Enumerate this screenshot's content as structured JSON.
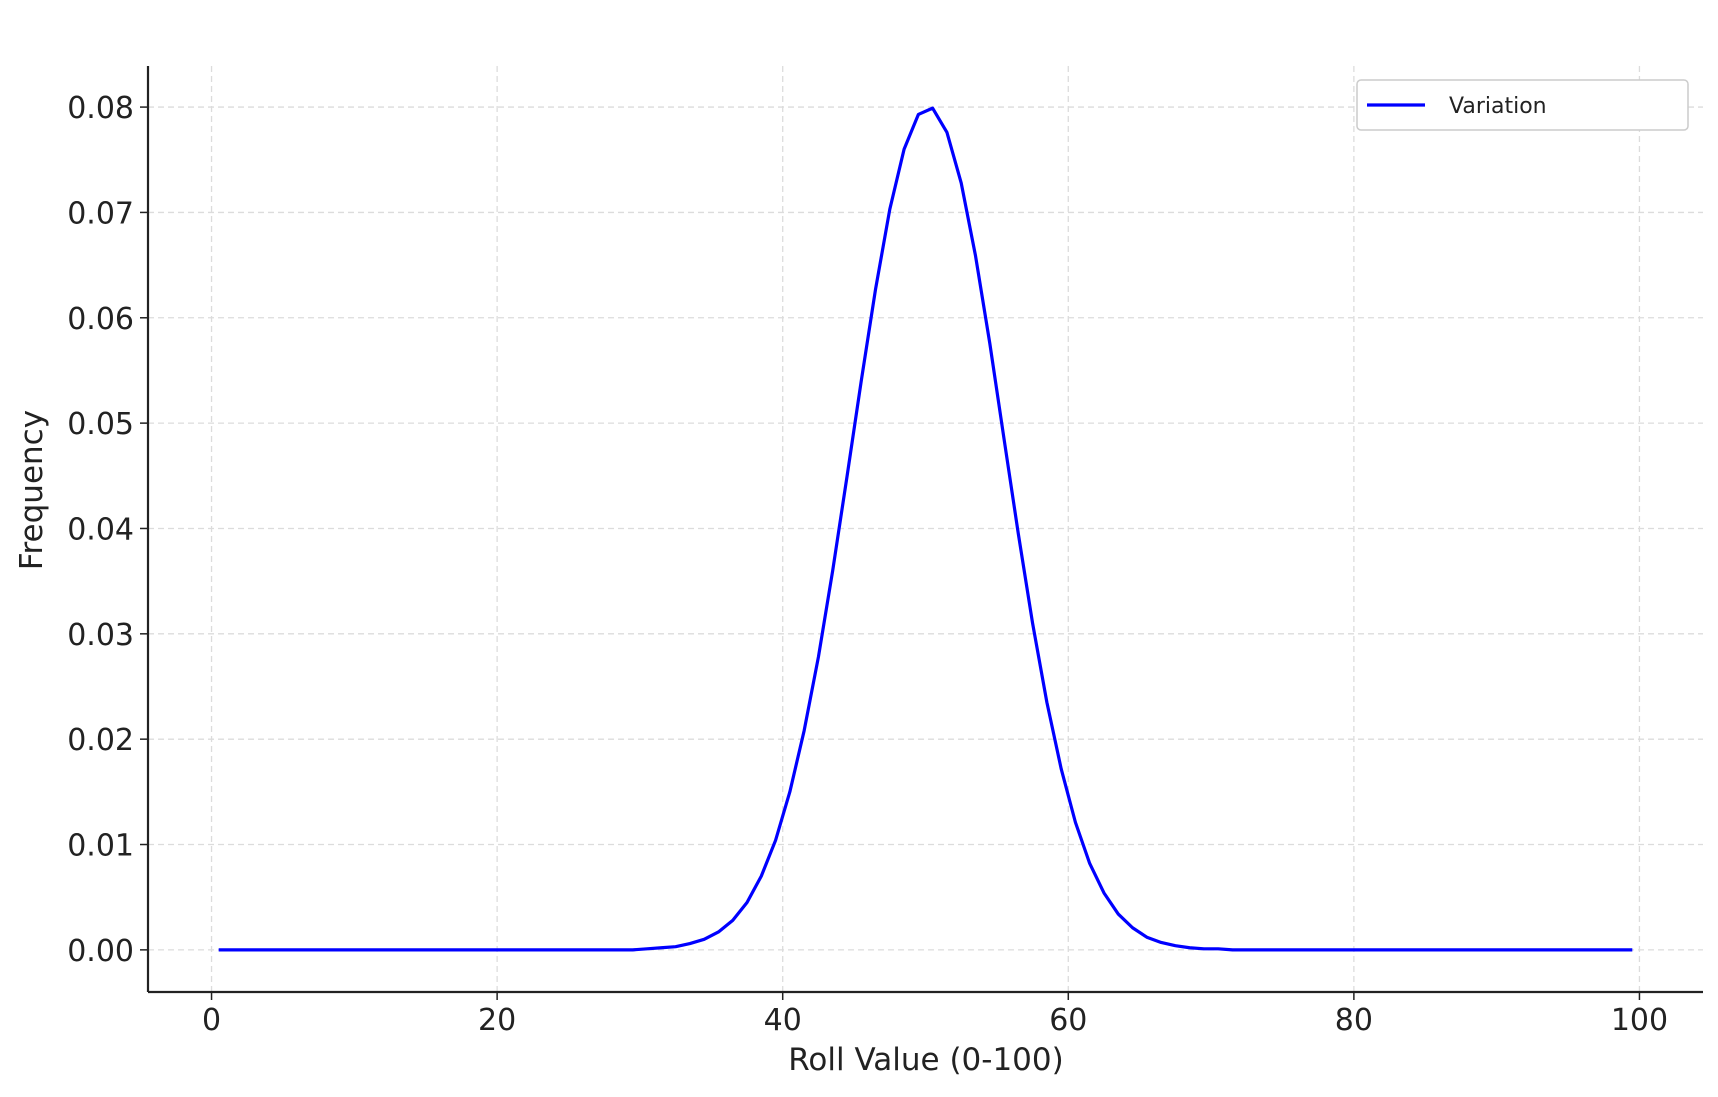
{
  "chart_data": {
    "type": "line",
    "xlabel": "Roll Value (0-100)",
    "ylabel": "Frequency",
    "x": [
      0.5,
      1.5,
      2.5,
      3.5,
      4.5,
      5.5,
      6.5,
      7.5,
      8.5,
      9.5,
      10.5,
      11.5,
      12.5,
      13.5,
      14.5,
      15.5,
      16.5,
      17.5,
      18.5,
      19.5,
      20.5,
      21.5,
      22.5,
      23.5,
      24.5,
      25.5,
      26.5,
      27.5,
      28.5,
      29.5,
      30.5,
      31.5,
      32.5,
      33.5,
      34.5,
      35.5,
      36.5,
      37.5,
      38.5,
      39.5,
      40.5,
      41.5,
      42.5,
      43.5,
      44.5,
      45.5,
      46.5,
      47.5,
      48.5,
      49.5,
      50.5,
      51.5,
      52.5,
      53.5,
      54.5,
      55.5,
      56.5,
      57.5,
      58.5,
      59.5,
      60.5,
      61.5,
      62.5,
      63.5,
      64.5,
      65.5,
      66.5,
      67.5,
      68.5,
      69.5,
      70.5,
      71.5,
      72.5,
      73.5,
      74.5,
      75.5,
      76.5,
      77.5,
      78.5,
      79.5,
      80.5,
      81.5,
      82.5,
      83.5,
      84.5,
      85.5,
      86.5,
      87.5,
      88.5,
      89.5,
      90.5,
      91.5,
      92.5,
      93.5,
      94.5,
      95.5,
      96.5,
      97.5,
      98.5,
      99.5
    ],
    "series": [
      {
        "name": "Variation",
        "color": "#0000ff",
        "values": [
          0,
          0,
          0,
          0,
          0,
          0,
          0,
          0,
          0,
          0,
          0,
          0,
          0,
          0,
          0,
          0,
          0,
          0,
          0,
          0,
          0,
          0,
          0,
          0,
          0,
          0,
          0,
          0,
          0,
          0,
          0.0001,
          0.0002,
          0.0003,
          0.0006,
          0.001,
          0.0017,
          0.0028,
          0.0045,
          0.007,
          0.0104,
          0.015,
          0.0208,
          0.0278,
          0.036,
          0.0449,
          0.054,
          0.0627,
          0.0703,
          0.076,
          0.0793,
          0.0799,
          0.0776,
          0.0728,
          0.0659,
          0.0576,
          0.0485,
          0.0395,
          0.031,
          0.0235,
          0.0172,
          0.0121,
          0.0082,
          0.0054,
          0.0034,
          0.0021,
          0.0012,
          0.0007,
          0.0004,
          0.0002,
          0.0001,
          0.0001,
          0,
          0,
          0,
          0,
          0,
          0,
          0,
          0,
          0,
          0,
          0,
          0,
          0,
          0,
          0,
          0,
          0,
          0,
          0,
          0,
          0,
          0,
          0,
          0,
          0,
          0,
          0,
          0,
          0
        ]
      }
    ],
    "xlim": [
      -4.45,
      104.45
    ],
    "ylim": [
      -0.004,
      0.0839
    ],
    "xticks": [
      0,
      20,
      40,
      60,
      80,
      100
    ],
    "yticks": [
      {
        "value": 0,
        "label": "0.00"
      },
      0.01,
      0.02,
      0.03,
      0.04,
      0.05,
      0.06,
      0.07,
      0.08
    ],
    "grid": true,
    "legend": "upper right"
  }
}
